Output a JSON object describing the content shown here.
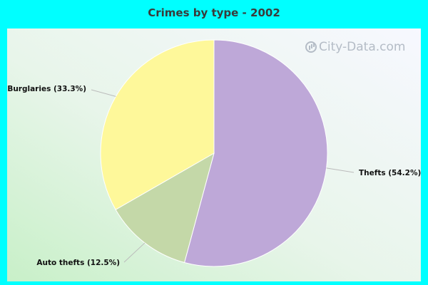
{
  "chart_data": {
    "type": "pie",
    "title": "Crimes by type - 2002",
    "slices": [
      {
        "name": "Thefts",
        "label": "Thefts (54.2%)",
        "value": 54.2,
        "color": "#bea8d8"
      },
      {
        "name": "Auto thefts",
        "label": "Auto thefts (12.5%)",
        "value": 12.5,
        "color": "#c4d8a8"
      },
      {
        "name": "Burglaries",
        "label": "Burglaries (33.3%)",
        "value": 33.3,
        "color": "#fef89a"
      }
    ],
    "start_angle_deg": 0,
    "direction": "clockwise",
    "legend": "none"
  },
  "watermark": {
    "text": "City-Data.com",
    "icon": "city-data-logo-icon"
  },
  "colors": {
    "background": "#00ffff",
    "label_text": "#111111",
    "leader_line": "#bbbbbb"
  }
}
